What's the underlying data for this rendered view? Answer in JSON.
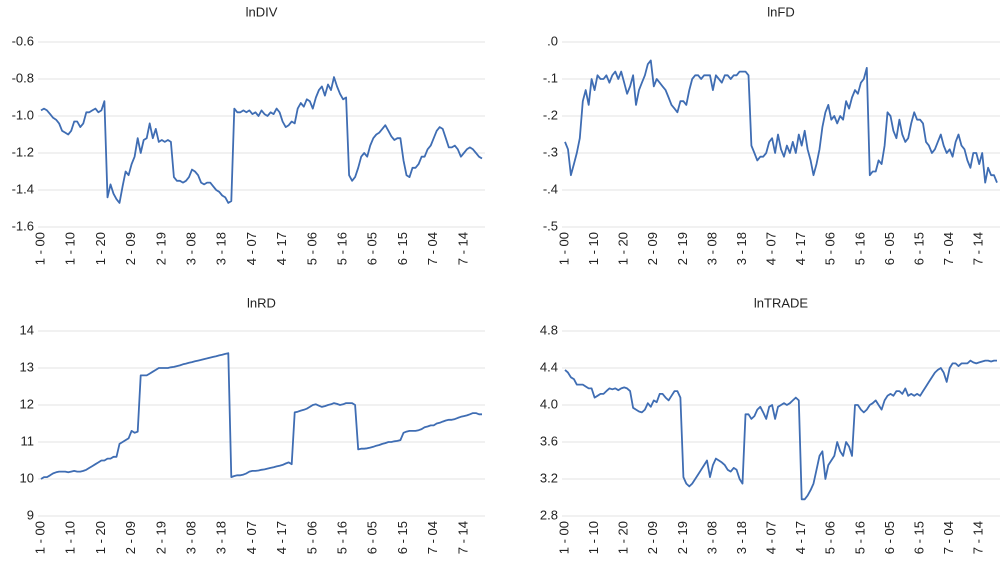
{
  "chart_data": [
    {
      "type": "line",
      "title": "lnDIV",
      "color": "#3f6db3",
      "grid": true,
      "categories": [
        "1 - 00",
        null,
        null,
        null,
        null,
        null,
        null,
        null,
        null,
        null,
        "1 - 10",
        null,
        null,
        null,
        null,
        null,
        null,
        null,
        null,
        null,
        "1 - 20",
        null,
        null,
        null,
        null,
        null,
        null,
        null,
        null,
        null,
        "2 - 09",
        null,
        null,
        null,
        null,
        null,
        null,
        null,
        null,
        null,
        "2 - 19",
        null,
        null,
        null,
        null,
        null,
        null,
        null,
        null,
        null,
        "3 - 08",
        null,
        null,
        null,
        null,
        null,
        null,
        null,
        null,
        null,
        "3 - 18",
        null,
        null,
        null,
        null,
        null,
        null,
        null,
        null,
        null,
        "4 - 07",
        null,
        null,
        null,
        null,
        null,
        null,
        null,
        null,
        null,
        "4 - 17",
        null,
        null,
        null,
        null,
        null,
        null,
        null,
        null,
        null,
        "5 - 06",
        null,
        null,
        null,
        null,
        null,
        null,
        null,
        null,
        null,
        "5 - 16",
        null,
        null,
        null,
        null,
        null,
        null,
        null,
        null,
        null,
        "6 - 05",
        null,
        null,
        null,
        null,
        null,
        null,
        null,
        null,
        null,
        "6 - 15",
        null,
        null,
        null,
        null,
        null,
        null,
        null,
        null,
        null,
        "7 - 04",
        null,
        null,
        null,
        null,
        null,
        null,
        null,
        null,
        null,
        "7 - 14",
        null,
        null,
        null,
        null,
        null,
        null
      ],
      "values": [
        -0.97,
        -0.96,
        -0.97,
        -0.99,
        -1.01,
        -1.02,
        -1.04,
        -1.08,
        -1.09,
        -1.1,
        -1.08,
        -1.03,
        -1.03,
        -1.06,
        -1.04,
        -0.98,
        -0.98,
        -0.97,
        -0.96,
        -0.98,
        -0.97,
        -0.92,
        -1.44,
        -1.37,
        -1.42,
        -1.45,
        -1.47,
        -1.38,
        -1.3,
        -1.32,
        -1.26,
        -1.22,
        -1.12,
        -1.2,
        -1.13,
        -1.12,
        -1.04,
        -1.12,
        -1.07,
        -1.14,
        -1.13,
        -1.14,
        -1.13,
        -1.14,
        -1.33,
        -1.35,
        -1.35,
        -1.36,
        -1.35,
        -1.33,
        -1.29,
        -1.3,
        -1.32,
        -1.36,
        -1.37,
        -1.36,
        -1.36,
        -1.38,
        -1.4,
        -1.41,
        -1.43,
        -1.44,
        -1.47,
        -1.46,
        -0.96,
        -0.98,
        -0.98,
        -0.97,
        -0.98,
        -0.97,
        -0.99,
        -0.98,
        -1.0,
        -0.97,
        -0.99,
        -1.0,
        -0.98,
        -0.99,
        -0.96,
        -0.98,
        -1.03,
        -1.06,
        -1.05,
        -1.03,
        -1.04,
        -0.96,
        -0.93,
        -0.95,
        -0.91,
        -0.92,
        -0.96,
        -0.9,
        -0.86,
        -0.84,
        -0.89,
        -0.83,
        -0.86,
        -0.79,
        -0.84,
        -0.88,
        -0.91,
        -0.9,
        -1.32,
        -1.35,
        -1.33,
        -1.28,
        -1.22,
        -1.2,
        -1.22,
        -1.16,
        -1.12,
        -1.1,
        -1.09,
        -1.07,
        -1.05,
        -1.08,
        -1.11,
        -1.13,
        -1.12,
        -1.12,
        -1.24,
        -1.32,
        -1.33,
        -1.28,
        -1.28,
        -1.26,
        -1.22,
        -1.22,
        -1.18,
        -1.16,
        -1.12,
        -1.08,
        -1.06,
        -1.07,
        -1.12,
        -1.17,
        -1.17,
        -1.16,
        -1.18,
        -1.22,
        -1.2,
        -1.18,
        -1.17,
        -1.18,
        -1.2,
        -1.22,
        -1.23
      ],
      "ylim": [
        -1.6,
        -0.6
      ],
      "yticks": [
        -1.6,
        -1.4,
        -1.2,
        {
          "value": -1.0,
          "label": "-1.0"
        },
        -0.8,
        -0.6
      ]
    },
    {
      "type": "line",
      "title": "lnFD",
      "color": "#3f6db3",
      "grid": true,
      "categories": [
        "1 - 00",
        null,
        null,
        null,
        null,
        null,
        null,
        null,
        null,
        null,
        "1 - 10",
        null,
        null,
        null,
        null,
        null,
        null,
        null,
        null,
        null,
        "1 - 20",
        null,
        null,
        null,
        null,
        null,
        null,
        null,
        null,
        null,
        "2 - 09",
        null,
        null,
        null,
        null,
        null,
        null,
        null,
        null,
        null,
        "2 - 19",
        null,
        null,
        null,
        null,
        null,
        null,
        null,
        null,
        null,
        "3 - 08",
        null,
        null,
        null,
        null,
        null,
        null,
        null,
        null,
        null,
        "3 - 18",
        null,
        null,
        null,
        null,
        null,
        null,
        null,
        null,
        null,
        "4 - 07",
        null,
        null,
        null,
        null,
        null,
        null,
        null,
        null,
        null,
        "4 - 17",
        null,
        null,
        null,
        null,
        null,
        null,
        null,
        null,
        null,
        "5 - 06",
        null,
        null,
        null,
        null,
        null,
        null,
        null,
        null,
        null,
        "5 - 16",
        null,
        null,
        null,
        null,
        null,
        null,
        null,
        null,
        null,
        "6 - 05",
        null,
        null,
        null,
        null,
        null,
        null,
        null,
        null,
        null,
        "6 - 15",
        null,
        null,
        null,
        null,
        null,
        null,
        null,
        null,
        null,
        "7 - 04",
        null,
        null,
        null,
        null,
        null,
        null,
        null,
        null,
        null,
        "7 - 14",
        null,
        null,
        null,
        null,
        null,
        null
      ],
      "values": [
        -0.27,
        -0.29,
        -0.36,
        -0.33,
        -0.3,
        -0.26,
        -0.16,
        -0.13,
        -0.17,
        -0.1,
        -0.13,
        -0.09,
        -0.1,
        -0.1,
        -0.09,
        -0.11,
        -0.09,
        -0.08,
        -0.1,
        -0.08,
        -0.11,
        -0.14,
        -0.12,
        -0.09,
        -0.17,
        -0.13,
        -0.11,
        -0.09,
        -0.06,
        -0.05,
        -0.12,
        -0.1,
        -0.11,
        -0.12,
        -0.13,
        -0.15,
        -0.17,
        -0.18,
        -0.19,
        -0.16,
        -0.16,
        -0.17,
        -0.13,
        -0.1,
        -0.09,
        -0.09,
        -0.1,
        -0.09,
        -0.09,
        -0.09,
        -0.13,
        -0.09,
        -0.1,
        -0.11,
        -0.09,
        -0.09,
        -0.1,
        -0.09,
        -0.09,
        -0.08,
        -0.08,
        -0.08,
        -0.09,
        -0.28,
        -0.3,
        -0.32,
        -0.31,
        -0.31,
        -0.3,
        -0.27,
        -0.26,
        -0.3,
        -0.25,
        -0.29,
        -0.31,
        -0.28,
        -0.3,
        -0.27,
        -0.3,
        -0.25,
        -0.28,
        -0.24,
        -0.29,
        -0.32,
        -0.36,
        -0.33,
        -0.29,
        -0.23,
        -0.19,
        -0.17,
        -0.21,
        -0.2,
        -0.22,
        -0.2,
        -0.21,
        -0.16,
        -0.18,
        -0.15,
        -0.13,
        -0.14,
        -0.11,
        -0.1,
        -0.07,
        -0.36,
        -0.35,
        -0.35,
        -0.32,
        -0.33,
        -0.28,
        -0.19,
        -0.2,
        -0.24,
        -0.26,
        -0.21,
        -0.25,
        -0.27,
        -0.26,
        -0.22,
        -0.19,
        -0.21,
        -0.21,
        -0.22,
        -0.27,
        -0.28,
        -0.3,
        -0.29,
        -0.27,
        -0.25,
        -0.28,
        -0.3,
        -0.29,
        -0.31,
        -0.27,
        -0.25,
        -0.28,
        -0.29,
        -0.32,
        -0.34,
        -0.3,
        -0.3,
        -0.33,
        -0.3,
        -0.38,
        -0.34,
        -0.36,
        -0.36,
        -0.38
      ],
      "ylim": [
        -0.5,
        0
      ],
      "yticks": [
        {
          "value": -0.5,
          "label": "-.5"
        },
        {
          "value": -0.4,
          "label": "-.4"
        },
        {
          "value": -0.3,
          "label": "-.3"
        },
        {
          "value": -0.2,
          "label": "-.2"
        },
        {
          "value": -0.1,
          "label": "-.1"
        },
        {
          "value": 0,
          "label": ".0"
        }
      ]
    },
    {
      "type": "line",
      "title": "lnRD",
      "color": "#3f6db3",
      "grid": true,
      "categories": [
        "1 - 00",
        null,
        null,
        null,
        null,
        null,
        null,
        null,
        null,
        null,
        "1 - 10",
        null,
        null,
        null,
        null,
        null,
        null,
        null,
        null,
        null,
        "1 - 20",
        null,
        null,
        null,
        null,
        null,
        null,
        null,
        null,
        null,
        "2 - 09",
        null,
        null,
        null,
        null,
        null,
        null,
        null,
        null,
        null,
        "2 - 19",
        null,
        null,
        null,
        null,
        null,
        null,
        null,
        null,
        null,
        "3 - 08",
        null,
        null,
        null,
        null,
        null,
        null,
        null,
        null,
        null,
        "3 - 18",
        null,
        null,
        null,
        null,
        null,
        null,
        null,
        null,
        null,
        "4 - 07",
        null,
        null,
        null,
        null,
        null,
        null,
        null,
        null,
        null,
        "4 - 17",
        null,
        null,
        null,
        null,
        null,
        null,
        null,
        null,
        null,
        "5 - 06",
        null,
        null,
        null,
        null,
        null,
        null,
        null,
        null,
        null,
        "5 - 16",
        null,
        null,
        null,
        null,
        null,
        null,
        null,
        null,
        null,
        "6 - 05",
        null,
        null,
        null,
        null,
        null,
        null,
        null,
        null,
        null,
        "6 - 15",
        null,
        null,
        null,
        null,
        null,
        null,
        null,
        null,
        null,
        "7 - 04",
        null,
        null,
        null,
        null,
        null,
        null,
        null,
        null,
        null,
        "7 - 14",
        null,
        null,
        null,
        null,
        null,
        null
      ],
      "values": [
        10.0,
        10.05,
        10.05,
        10.1,
        10.15,
        10.18,
        10.2,
        10.2,
        10.2,
        10.18,
        10.2,
        10.22,
        10.2,
        10.2,
        10.22,
        10.25,
        10.3,
        10.35,
        10.4,
        10.45,
        10.5,
        10.5,
        10.55,
        10.55,
        10.6,
        10.6,
        10.95,
        11.0,
        11.05,
        11.1,
        11.3,
        11.25,
        11.28,
        12.8,
        12.8,
        12.8,
        12.85,
        12.9,
        12.95,
        13.0,
        13.0,
        13.0,
        13.0,
        13.02,
        13.03,
        13.05,
        13.07,
        13.1,
        13.12,
        13.14,
        13.16,
        13.18,
        13.2,
        13.22,
        13.24,
        13.26,
        13.28,
        13.3,
        13.32,
        13.34,
        13.36,
        13.38,
        13.4,
        10.05,
        10.08,
        10.1,
        10.1,
        10.12,
        10.15,
        10.2,
        10.22,
        10.22,
        10.23,
        10.25,
        10.26,
        10.28,
        10.3,
        10.32,
        10.34,
        10.36,
        10.38,
        10.42,
        10.45,
        10.4,
        11.8,
        11.82,
        11.85,
        11.87,
        11.9,
        11.95,
        12.0,
        12.02,
        11.98,
        11.95,
        11.97,
        12.0,
        12.02,
        12.05,
        12.03,
        12.0,
        12.02,
        12.05,
        12.05,
        12.05,
        12.0,
        10.8,
        10.82,
        10.82,
        10.83,
        10.85,
        10.87,
        10.9,
        10.92,
        10.95,
        10.97,
        11.0,
        11.0,
        11.02,
        11.03,
        11.05,
        11.25,
        11.28,
        11.3,
        11.3,
        11.3,
        11.32,
        11.35,
        11.4,
        11.42,
        11.45,
        11.45,
        11.5,
        11.52,
        11.55,
        11.58,
        11.6,
        11.6,
        11.62,
        11.65,
        11.68,
        11.7,
        11.72,
        11.75,
        11.78,
        11.78,
        11.75,
        11.75
      ],
      "ylim": [
        9,
        14
      ],
      "yticks": [
        9,
        10,
        11,
        12,
        13,
        14
      ]
    },
    {
      "type": "line",
      "title": "lnTRADE",
      "color": "#3f6db3",
      "grid": true,
      "categories": [
        "1 - 00",
        null,
        null,
        null,
        null,
        null,
        null,
        null,
        null,
        null,
        "1 - 10",
        null,
        null,
        null,
        null,
        null,
        null,
        null,
        null,
        null,
        "1 - 20",
        null,
        null,
        null,
        null,
        null,
        null,
        null,
        null,
        null,
        "2 - 09",
        null,
        null,
        null,
        null,
        null,
        null,
        null,
        null,
        null,
        "2 - 19",
        null,
        null,
        null,
        null,
        null,
        null,
        null,
        null,
        null,
        "3 - 08",
        null,
        null,
        null,
        null,
        null,
        null,
        null,
        null,
        null,
        "3 - 18",
        null,
        null,
        null,
        null,
        null,
        null,
        null,
        null,
        null,
        "4 - 07",
        null,
        null,
        null,
        null,
        null,
        null,
        null,
        null,
        null,
        "4 - 17",
        null,
        null,
        null,
        null,
        null,
        null,
        null,
        null,
        null,
        "5 - 06",
        null,
        null,
        null,
        null,
        null,
        null,
        null,
        null,
        null,
        "5 - 16",
        null,
        null,
        null,
        null,
        null,
        null,
        null,
        null,
        null,
        "6 - 05",
        null,
        null,
        null,
        null,
        null,
        null,
        null,
        null,
        null,
        "6 - 15",
        null,
        null,
        null,
        null,
        null,
        null,
        null,
        null,
        null,
        "7 - 04",
        null,
        null,
        null,
        null,
        null,
        null,
        null,
        null,
        null,
        "7 - 14",
        null,
        null,
        null,
        null,
        null,
        null
      ],
      "values": [
        4.38,
        4.35,
        4.3,
        4.28,
        4.22,
        4.22,
        4.22,
        4.2,
        4.18,
        4.18,
        4.08,
        4.1,
        4.12,
        4.12,
        4.15,
        4.18,
        4.17,
        4.18,
        4.16,
        4.18,
        4.19,
        4.18,
        4.15,
        3.97,
        3.95,
        3.93,
        3.92,
        3.95,
        4.02,
        3.98,
        4.05,
        4.03,
        4.12,
        4.12,
        4.08,
        4.05,
        4.1,
        4.15,
        4.15,
        4.08,
        3.22,
        3.15,
        3.12,
        3.15,
        3.2,
        3.25,
        3.3,
        3.35,
        3.4,
        3.22,
        3.35,
        3.42,
        3.4,
        3.38,
        3.35,
        3.3,
        3.28,
        3.32,
        3.3,
        3.2,
        3.15,
        3.9,
        3.9,
        3.85,
        3.88,
        3.95,
        3.98,
        3.92,
        3.85,
        3.98,
        4.0,
        3.85,
        3.98,
        4.0,
        4.02,
        4.0,
        4.02,
        4.05,
        4.08,
        4.05,
        2.98,
        2.98,
        3.02,
        3.08,
        3.15,
        3.3,
        3.45,
        3.5,
        3.2,
        3.35,
        3.4,
        3.45,
        3.6,
        3.5,
        3.45,
        3.6,
        3.55,
        3.45,
        4.0,
        4.0,
        3.95,
        3.92,
        3.95,
        4.0,
        4.02,
        4.05,
        4.0,
        3.95,
        4.05,
        4.1,
        4.12,
        4.1,
        4.15,
        4.15,
        4.12,
        4.18,
        4.1,
        4.12,
        4.1,
        4.12,
        4.1,
        4.15,
        4.2,
        4.25,
        4.3,
        4.35,
        4.38,
        4.4,
        4.35,
        4.25,
        4.4,
        4.45,
        4.45,
        4.42,
        4.45,
        4.45,
        4.45,
        4.48,
        4.46,
        4.45,
        4.46,
        4.47,
        4.48,
        4.48,
        4.47,
        4.48,
        4.48
      ],
      "ylim": [
        2.8,
        4.8
      ],
      "yticks": [
        2.8,
        3.2,
        3.6,
        {
          "value": 4.0,
          "label": "4.0"
        },
        4.4,
        4.8
      ]
    }
  ]
}
